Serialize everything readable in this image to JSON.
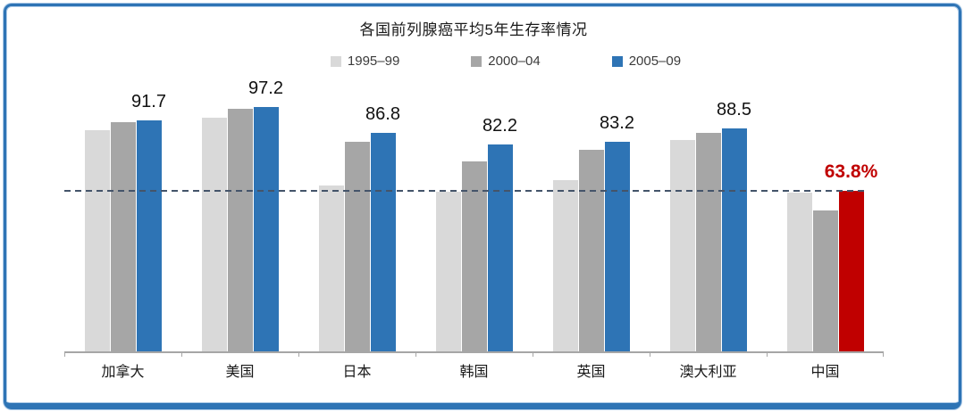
{
  "window": {
    "frame_border_color": "#2E74B5",
    "frame_halo_color": "#AECBE8",
    "background_color": "#FFFFFF"
  },
  "chart_data": {
    "type": "bar",
    "title": "各国前列腺癌平均5年生存率情况",
    "categories": [
      "加拿大",
      "美国",
      "日本",
      "韩国",
      "英国",
      "澳大利亚",
      "中国"
    ],
    "series": [
      {
        "name": "1995–99",
        "color": "#D9D9D9",
        "values": [
          88.0,
          93.0,
          66.0,
          63.5,
          68.0,
          84.0,
          63.0
        ]
      },
      {
        "name": "2000–04",
        "color": "#A6A6A6",
        "values": [
          91.0,
          96.3,
          83.5,
          75.5,
          80.2,
          87.0,
          56.0
        ]
      },
      {
        "name": "2005–09",
        "color": "#2E74B5",
        "values": [
          91.7,
          97.2,
          86.8,
          82.2,
          83.2,
          88.5,
          63.8
        ]
      }
    ],
    "value_labels": [
      "91.7",
      "97.2",
      "86.8",
      "82.2",
      "83.2",
      "88.5",
      "63.8%"
    ],
    "highlight": {
      "category": "中国",
      "category_index": 6,
      "series_index": 2,
      "bar_color": "#C00000",
      "label_color": "#C00000"
    },
    "reference_line": {
      "value": 63.8,
      "color": "#44546A",
      "style": "dashed"
    },
    "ylim": [
      0,
      100
    ],
    "axis_color": "#A6A6A6",
    "value_label_color": "#111111",
    "legend_position": "top",
    "grid": false
  }
}
